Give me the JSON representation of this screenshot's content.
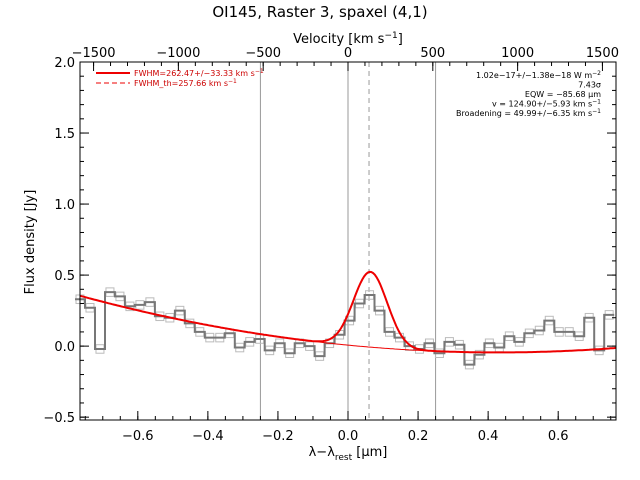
{
  "chart_data": {
    "type": "line",
    "title": "OI145, Raster 3, spaxel (4,1)",
    "xlabel_main": "λ−λ",
    "xlabel_sub": "rest",
    "xlabel_unit": " [μm]",
    "ylabel": "Flux density [Jy]",
    "top_axis_label": "Velocity [km s",
    "top_axis_label_exp": "−1",
    "top_axis_label_close": "]",
    "xlim": [
      -0.765,
      0.765
    ],
    "ylim": [
      -0.52,
      2.0
    ],
    "vlim": [
      -1580,
      1580
    ],
    "x_ticks": [
      {
        "value": -0.6,
        "label": "−0.6"
      },
      {
        "value": -0.4,
        "label": "−0.4"
      },
      {
        "value": -0.2,
        "label": "−0.2"
      },
      {
        "value": 0.0,
        "label": "0.0"
      },
      {
        "value": 0.2,
        "label": "0.2"
      },
      {
        "value": 0.4,
        "label": "0.4"
      },
      {
        "value": 0.6,
        "label": "0.6"
      }
    ],
    "y_ticks": [
      {
        "value": -0.5,
        "label": "−0.5"
      },
      {
        "value": 0.0,
        "label": "0.0"
      },
      {
        "value": 0.5,
        "label": "0.5"
      },
      {
        "value": 1.0,
        "label": "1.0"
      },
      {
        "value": 1.5,
        "label": "1.5"
      },
      {
        "value": 2.0,
        "label": "2.0"
      }
    ],
    "v_ticks": [
      {
        "value": -1500,
        "label": "−1500"
      },
      {
        "value": -1000,
        "label": "−1000"
      },
      {
        "value": -500,
        "label": "−500"
      },
      {
        "value": 0,
        "label": "0"
      },
      {
        "value": 500,
        "label": "500"
      },
      {
        "value": 1000,
        "label": "1000"
      },
      {
        "value": 1500,
        "label": "1500"
      }
    ],
    "vertical_lines": [
      {
        "x": -0.25,
        "style": "solid"
      },
      {
        "x": 0.0,
        "style": "solid"
      },
      {
        "x": 0.06,
        "style": "dashed"
      },
      {
        "x": 0.25,
        "style": "solid"
      }
    ],
    "legend": [
      {
        "text": "FWHM=262.47+/−33.33 km s",
        "exp": "−1",
        "style": "solid"
      },
      {
        "text": "FWHM_th=257.66 km s",
        "exp": "−1",
        "style": "dashed"
      }
    ],
    "annotations": [
      {
        "text": "1.02e−17+/−1.38e−18 W m",
        "exp": "−2"
      },
      {
        "text": "7.43σ",
        "exp": ""
      },
      {
        "text": "EQW = −85.68 μm",
        "exp": ""
      },
      {
        "text": "v = 124.90+/−5.93 km s",
        "exp": "−1"
      },
      {
        "text": "Broadening = 49.99+/−6.35 km s",
        "exp": "−1"
      }
    ],
    "series": [
      {
        "kind": "step",
        "bin_width": 0.0285,
        "x": [
          -0.765,
          -0.7365,
          -0.708,
          -0.6795,
          -0.651,
          -0.6225,
          -0.594,
          -0.5655,
          -0.537,
          -0.5085,
          -0.48,
          -0.4515,
          -0.423,
          -0.3945,
          -0.366,
          -0.3375,
          -0.309,
          -0.2805,
          -0.252,
          -0.2235,
          -0.195,
          -0.1665,
          -0.138,
          -0.1095,
          -0.081,
          -0.0525,
          -0.024,
          0.0045,
          0.033,
          0.0615,
          0.09,
          0.1185,
          0.147,
          0.1755,
          0.204,
          0.2325,
          0.261,
          0.2895,
          0.318,
          0.3465,
          0.375,
          0.4035,
          0.432,
          0.4605,
          0.489,
          0.5175,
          0.546,
          0.5745,
          0.603,
          0.6315,
          0.66,
          0.6885,
          0.717,
          0.7455
        ],
        "y": [
          0.33,
          0.27,
          -0.02,
          0.38,
          0.35,
          0.28,
          0.29,
          0.31,
          0.21,
          0.2,
          0.25,
          0.16,
          0.1,
          0.06,
          0.06,
          0.09,
          -0.01,
          0.03,
          0.05,
          -0.03,
          0.02,
          -0.05,
          0.02,
          0.0,
          -0.07,
          0.02,
          0.08,
          0.18,
          0.3,
          0.36,
          0.25,
          0.1,
          0.06,
          0.0,
          -0.02,
          0.02,
          -0.05,
          0.03,
          0.01,
          -0.13,
          -0.06,
          0.02,
          -0.01,
          0.07,
          0.03,
          0.09,
          0.11,
          0.18,
          0.1,
          0.1,
          0.07,
          0.2,
          -0.03,
          0.22
        ],
        "color": "#777777",
        "error_color": "#bbbbbb",
        "error": 0.03
      },
      {
        "kind": "model",
        "color": "#ee0000",
        "continuum": [
          0.007,
          -0.24,
          0.28
        ],
        "gaussian": {
          "amp": 0.53,
          "center": 0.064,
          "sigma": 0.048
        }
      }
    ],
    "grid": false
  }
}
